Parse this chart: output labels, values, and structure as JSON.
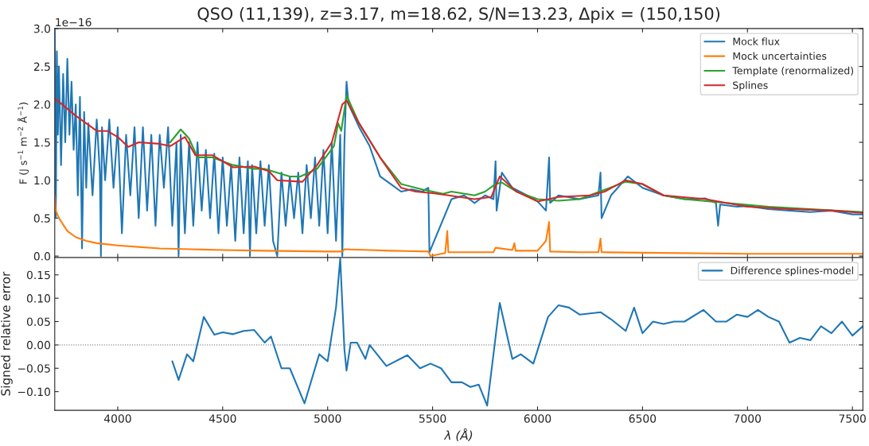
{
  "chart_data": [
    {
      "type": "line",
      "title": "QSO (11,139), z=3.17, m=18.62, S/N=13.23, Δpix = (150,150)",
      "ylabel": "F (J s$^{−1}$ m$^{−2}$ Å$^{−1}$)",
      "annotations": [
        "1e−16"
      ],
      "xlim": [
        3700,
        7550
      ],
      "xticks": [
        4000,
        4500,
        5000,
        5500,
        6000,
        6500,
        7000,
        7500
      ],
      "ylim": [
        -0.02,
        3.0
      ],
      "yticks": [
        {
          "value": 0,
          "label": "0.0"
        },
        0.5,
        {
          "value": 1,
          "label": "1.0"
        },
        1.5,
        {
          "value": 2,
          "label": "2.0"
        },
        2.5,
        {
          "value": 3,
          "label": "3.0"
        }
      ],
      "tick_labels": "y",
      "legend": "top right",
      "grid": false,
      "series": [
        {
          "name": "Mock flux",
          "color": "#1f77b4",
          "x": [
            3700,
            3705,
            3710,
            3715,
            3720,
            3730,
            3740,
            3750,
            3760,
            3770,
            3780,
            3790,
            3800,
            3810,
            3820,
            3830,
            3840,
            3850,
            3860,
            3880,
            3900,
            3915,
            3920,
            3925,
            3940,
            3960,
            3980,
            4000,
            4020,
            4040,
            4060,
            4080,
            4100,
            4120,
            4140,
            4160,
            4180,
            4200,
            4220,
            4240,
            4260,
            4280,
            4290,
            4300,
            4320,
            4340,
            4360,
            4380,
            4400,
            4420,
            4440,
            4460,
            4480,
            4500,
            4520,
            4540,
            4560,
            4580,
            4600,
            4620,
            4630,
            4640,
            4660,
            4680,
            4700,
            4720,
            4740,
            4760,
            4780,
            4800,
            4820,
            4840,
            4860,
            4880,
            4900,
            4920,
            4940,
            4960,
            4980,
            5000,
            5020,
            5040,
            5060,
            5070,
            5080,
            5090,
            5100,
            5150,
            5200,
            5250,
            5300,
            5350,
            5400,
            5450,
            5480,
            5485,
            5590,
            5650,
            5700,
            5750,
            5790,
            5800,
            5805,
            5830,
            5880,
            5950,
            6000,
            6040,
            6050,
            6055,
            6060,
            6100,
            6200,
            6290,
            6300,
            6305,
            6350,
            6430,
            6500,
            6600,
            6700,
            6800,
            6850,
            6860,
            6870,
            6950,
            7000,
            7100,
            7200,
            7300,
            7400,
            7500,
            7550
          ],
          "values": [
            3.0,
            0.5,
            2.7,
            1.6,
            2.5,
            1.2,
            2.4,
            1.5,
            2.6,
            1.6,
            2.3,
            1.4,
            2.0,
            0.8,
            2.1,
            0.1,
            1.9,
            0.9,
            1.75,
            0.8,
            1.8,
            1.1,
            0.0,
            1.7,
            1.0,
            1.8,
            0.9,
            1.7,
            0.3,
            1.6,
            0.8,
            1.7,
            0.5,
            1.7,
            0.6,
            1.6,
            0.4,
            1.6,
            0.9,
            1.7,
            0.4,
            1.5,
            0.0,
            1.6,
            0.3,
            1.5,
            0.4,
            1.5,
            0.6,
            1.4,
            0.5,
            1.35,
            0.3,
            1.3,
            0.4,
            1.2,
            0.2,
            1.3,
            0.3,
            1.25,
            0.0,
            1.2,
            0.3,
            1.25,
            0.4,
            1.2,
            0.2,
            0.0,
            1.1,
            0.4,
            1.05,
            0.5,
            1.1,
            0.3,
            1.2,
            0.5,
            1.3,
            0.4,
            1.4,
            0.3,
            1.5,
            0.2,
            1.6,
            0.0,
            1.5,
            2.3,
            2.0,
            1.7,
            1.45,
            1.05,
            0.95,
            0.85,
            0.88,
            0.85,
            0.9,
            0.05,
            0.75,
            0.8,
            0.7,
            0.8,
            0.75,
            1.25,
            0.6,
            1.1,
            0.9,
            0.8,
            0.72,
            0.6,
            null,
            1.3,
            0.7,
            0.8,
            0.75,
            0.8,
            1.1,
            0.5,
            0.8,
            1.05,
            0.9,
            0.8,
            0.75,
            0.76,
            0.7,
            0.4,
            0.68,
            0.65,
            0.66,
            0.62,
            0.6,
            0.58,
            0.6,
            0.55,
            0.55
          ]
        },
        {
          "name": "Mock uncertainties",
          "color": "#ff7f0e",
          "x": [
            3700,
            3705,
            3720,
            3760,
            3800,
            3850,
            3900,
            4000,
            4100,
            4200,
            4350,
            4500,
            4700,
            5000,
            5070,
            5080,
            5200,
            5300,
            5480,
            5490,
            5560,
            5570,
            5575,
            5700,
            5790,
            5800,
            5880,
            5890,
            5895,
            6000,
            6040,
            6055,
            6060,
            6200,
            6290,
            6300,
            6305,
            7000,
            7300,
            7550
          ],
          "values": [
            0.8,
            0.6,
            0.5,
            0.33,
            0.25,
            0.2,
            0.17,
            0.14,
            0.12,
            0.1,
            0.09,
            0.08,
            0.07,
            0.06,
            0.06,
            0.09,
            0.08,
            0.07,
            0.06,
            0.0,
            0.04,
            0.33,
            0.05,
            0.05,
            0.05,
            0.11,
            0.08,
            0.17,
            0.07,
            0.07,
            0.2,
            0.45,
            0.06,
            0.05,
            0.05,
            0.23,
            0.05,
            0.03,
            0.03,
            0.03
          ]
        },
        {
          "name": "Template (renormalized)",
          "color": "#2ca02c",
          "x": [
            4250,
            4300,
            4340,
            4380,
            4450,
            4550,
            4650,
            4700,
            4820,
            4870,
            4950,
            5030,
            5050,
            5065,
            5090,
            5150,
            5250,
            5350,
            5450,
            5500,
            5550,
            5590,
            5700,
            5750,
            5800,
            5830,
            5900,
            6000,
            6100,
            6200,
            6300,
            6420,
            6500,
            6600,
            6700,
            6900,
            7100,
            7300,
            7550
          ],
          "values": [
            1.5,
            1.67,
            1.55,
            1.3,
            1.3,
            1.2,
            1.15,
            1.15,
            1.05,
            1.05,
            1.15,
            1.45,
            1.75,
            1.65,
            2.12,
            1.75,
            1.3,
            0.95,
            0.88,
            0.85,
            0.82,
            0.85,
            0.8,
            0.85,
            0.95,
            0.97,
            0.85,
            0.75,
            0.73,
            0.75,
            null,
            0.98,
            0.95,
            0.8,
            0.75,
            0.7,
            0.65,
            0.62,
            0.58
          ]
        },
        {
          "name": "Splines",
          "color": "#d62728",
          "x": [
            3700,
            3800,
            3850,
            3900,
            3950,
            4000,
            4050,
            4100,
            4200,
            4250,
            4320,
            4370,
            4450,
            4550,
            4650,
            4720,
            4760,
            4880,
            4950,
            5020,
            5070,
            5090,
            5150,
            5250,
            5350,
            5420,
            5500,
            5550,
            5700,
            5780,
            5820,
            5900,
            6000,
            6100,
            6250,
            6320,
            6420,
            6500,
            6600,
            6800,
            7000,
            7200,
            7400,
            7550
          ],
          "values": [
            2.08,
            1.85,
            1.75,
            1.65,
            1.65,
            1.57,
            1.44,
            1.5,
            1.48,
            1.45,
            1.57,
            1.33,
            1.33,
            1.17,
            1.18,
            1.12,
            1.0,
            0.98,
            1.2,
            1.5,
            2.0,
            2.05,
            1.75,
            1.3,
            0.9,
            0.85,
            0.83,
            0.81,
            0.75,
            0.78,
            1.05,
            0.85,
            0.72,
            0.78,
            0.8,
            0.85,
            1.0,
            0.95,
            0.8,
            0.75,
            0.65,
            0.62,
            0.6,
            0.57
          ]
        }
      ]
    },
    {
      "type": "line",
      "xlabel": "λ (Å)",
      "ylabel": "Signed relative error",
      "xlim": [
        3700,
        7550
      ],
      "xticks": [
        4000,
        4500,
        5000,
        5500,
        6000,
        6500,
        7000,
        7500
      ],
      "ylim": [
        -0.14,
        0.187
      ],
      "yticks": [
        {
          "value": -0.1,
          "label": "−0.10"
        },
        {
          "value": -0.05,
          "label": "−0.05"
        },
        {
          "value": 0,
          "label": "0.00"
        },
        {
          "value": 0.05,
          "label": "0.05"
        },
        {
          "value": 0.1,
          "label": "0.10"
        },
        {
          "value": 0.15,
          "label": "0.15"
        }
      ],
      "legend": "top right",
      "grid": false,
      "ref_lines": [
        {
          "axis": "y",
          "value": 0,
          "color": "#808080",
          "line_style": "dotted"
        }
      ],
      "series": [
        {
          "name": "Difference splines-model",
          "color": "#1f77b4",
          "x": [
            4260,
            4290,
            4330,
            4360,
            4410,
            4460,
            4500,
            4550,
            4600,
            4650,
            4700,
            4730,
            4780,
            4820,
            4890,
            4960,
            5000,
            5040,
            5060,
            5080,
            5090,
            5110,
            5140,
            5180,
            5200,
            5280,
            5380,
            5440,
            5490,
            5540,
            5590,
            5640,
            5680,
            5720,
            5760,
            5820,
            5880,
            5920,
            5980,
            6050,
            6100,
            6150,
            6200,
            6300,
            6350,
            6420,
            6460,
            6500,
            6550,
            6600,
            6650,
            6700,
            6790,
            6850,
            6900,
            6950,
            7000,
            7050,
            7100,
            7150,
            7200,
            7250,
            7300,
            7350,
            7400,
            7450,
            7500,
            7550
          ],
          "values": [
            -0.035,
            -0.075,
            -0.02,
            -0.035,
            0.06,
            0.022,
            0.027,
            0.023,
            0.03,
            0.032,
            0.005,
            0.018,
            -0.05,
            -0.05,
            -0.125,
            -0.02,
            -0.035,
            0.08,
            0.185,
            -0.01,
            -0.055,
            0.005,
            0.005,
            -0.03,
            0.0,
            -0.045,
            -0.022,
            -0.05,
            -0.04,
            -0.05,
            -0.08,
            -0.08,
            -0.09,
            -0.085,
            -0.13,
            0.09,
            -0.03,
            -0.02,
            -0.04,
            0.06,
            0.085,
            0.08,
            0.065,
            0.07,
            0.055,
            0.03,
            0.08,
            0.025,
            0.05,
            0.045,
            0.05,
            0.05,
            0.075,
            0.05,
            0.05,
            0.065,
            0.06,
            0.075,
            0.06,
            0.05,
            0.005,
            0.015,
            0.01,
            0.04,
            0.025,
            0.05,
            0.02,
            0.04
          ]
        }
      ]
    }
  ]
}
